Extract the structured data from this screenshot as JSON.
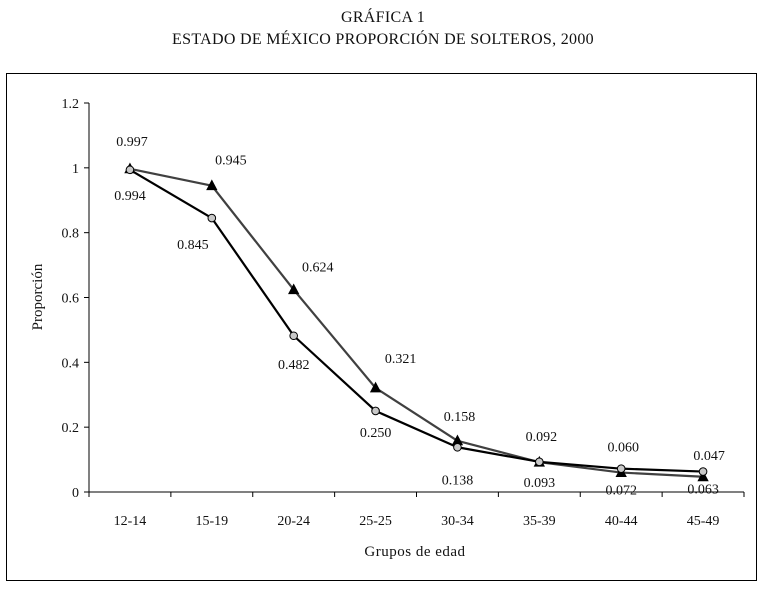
{
  "title": "GRÁFICA 1",
  "subtitle": "ESTADO DE MÉXICO PROPORCIÓN DE SOLTEROS, 2000",
  "chart_data": {
    "type": "line",
    "title": "GRÁFICA 1",
    "subtitle": "ESTADO DE MÉXICO PROPORCIÓN DE SOLTEROS, 2000",
    "xlabel": "Grupos de edad",
    "ylabel": "Proporción",
    "ylim": [
      0,
      1.2
    ],
    "yticks": [
      "0",
      "0.2",
      "0.4",
      "0.6",
      "0.8",
      "1",
      "1.2"
    ],
    "categories": [
      "12-14",
      "15-19",
      "20-24",
      "25-25",
      "30-34",
      "35-39",
      "40-44",
      "45-49"
    ],
    "grid": false,
    "legend": "none",
    "series": [
      {
        "marker": "circle",
        "line_color": "#000000",
        "marker_color": "#c8c8c8",
        "values": [
          0.994,
          0.845,
          0.482,
          0.25,
          0.138,
          0.093,
          0.072,
          0.063
        ],
        "labels": [
          "0.994",
          "0.845",
          "0.482",
          "0.250",
          "0.138",
          "0.093",
          "0.072",
          "0.063"
        ]
      },
      {
        "marker": "triangle",
        "line_color": "#404040",
        "marker_color": "#000000",
        "values": [
          0.997,
          0.945,
          0.624,
          0.321,
          0.158,
          0.092,
          0.06,
          0.047
        ],
        "labels": [
          "0.997",
          "0.945",
          "0.624",
          "0.321",
          "0.158",
          "0.092",
          "0.060",
          "0.047"
        ]
      }
    ]
  }
}
